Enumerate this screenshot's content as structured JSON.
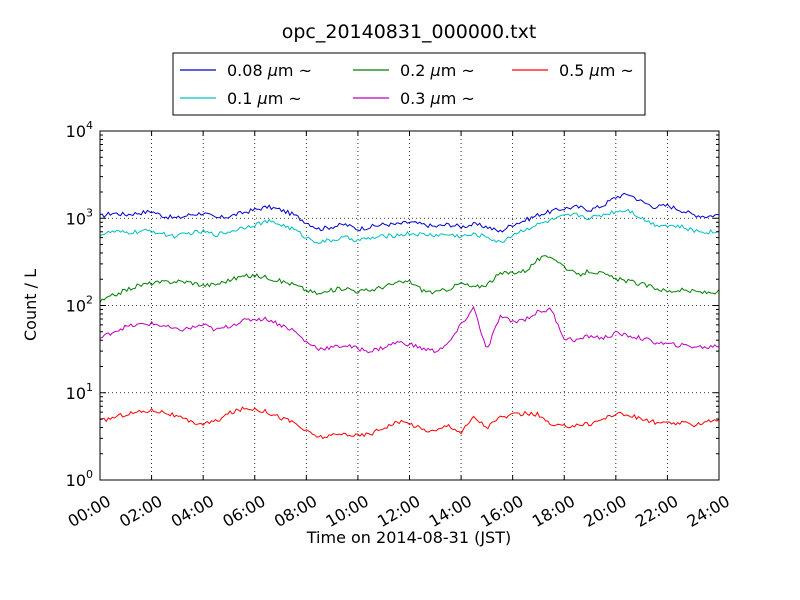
{
  "chart_data": {
    "type": "line",
    "title": "opc_20140831_000000.txt",
    "xlabel": "Time on 2014-08-31 (JST)",
    "ylabel": "Count / L",
    "x_unit": "hour",
    "xlim": [
      0,
      24
    ],
    "x_ticks": [
      {
        "value": 0,
        "label": "00:00"
      },
      {
        "value": 2,
        "label": "02:00"
      },
      {
        "value": 4,
        "label": "04:00"
      },
      {
        "value": 6,
        "label": "06:00"
      },
      {
        "value": 8,
        "label": "08:00"
      },
      {
        "value": 10,
        "label": "10:00"
      },
      {
        "value": 12,
        "label": "12:00"
      },
      {
        "value": 14,
        "label": "14:00"
      },
      {
        "value": 16,
        "label": "16:00"
      },
      {
        "value": 18,
        "label": "18:00"
      },
      {
        "value": 20,
        "label": "20:00"
      },
      {
        "value": 22,
        "label": "22:00"
      },
      {
        "value": 24,
        "label": "24:00"
      }
    ],
    "yscale": "log",
    "ylim": [
      1,
      10000
    ],
    "y_ticks": [
      {
        "value": 1,
        "base": "10",
        "exp": "0"
      },
      {
        "value": 10,
        "base": "10",
        "exp": "1"
      },
      {
        "value": 100,
        "base": "10",
        "exp": "2"
      },
      {
        "value": 1000,
        "base": "10",
        "exp": "3"
      },
      {
        "value": 10000,
        "base": "10",
        "exp": "4"
      }
    ],
    "grid": true,
    "legend_position": "top-center-outside",
    "x": [
      0,
      0.5,
      1,
      1.5,
      2,
      2.5,
      3,
      3.5,
      4,
      4.5,
      5,
      5.5,
      6,
      6.5,
      7,
      7.5,
      8,
      8.5,
      9,
      9.5,
      10,
      10.5,
      11,
      11.5,
      12,
      12.5,
      13,
      13.5,
      14,
      14.5,
      15,
      15.5,
      16,
      16.5,
      17,
      17.5,
      18,
      18.5,
      19,
      19.5,
      20,
      20.5,
      21,
      21.5,
      22,
      22.5,
      23,
      23.5,
      24
    ],
    "series": [
      {
        "name": "0.08",
        "unit": "μm",
        "suffix": "~",
        "color": "#0000cc",
        "values": [
          1050,
          1150,
          1100,
          1150,
          1200,
          1050,
          1000,
          1100,
          1150,
          1000,
          1050,
          1150,
          1250,
          1350,
          1250,
          1100,
          900,
          750,
          800,
          850,
          750,
          800,
          850,
          850,
          900,
          850,
          800,
          850,
          800,
          850,
          800,
          700,
          850,
          950,
          1100,
          1200,
          1300,
          1350,
          1250,
          1400,
          1750,
          1900,
          1550,
          1350,
          1400,
          1250,
          1100,
          1050,
          1100
        ]
      },
      {
        "name": "0.1",
        "unit": "μm",
        "suffix": "~",
        "color": "#00c0c0",
        "values": [
          650,
          700,
          680,
          700,
          720,
          650,
          620,
          680,
          700,
          650,
          700,
          780,
          850,
          920,
          850,
          750,
          600,
          530,
          560,
          600,
          560,
          590,
          620,
          640,
          670,
          650,
          640,
          650,
          620,
          650,
          620,
          520,
          650,
          750,
          850,
          950,
          1050,
          1100,
          1000,
          1100,
          1200,
          1250,
          1000,
          850,
          830,
          800,
          720,
          700,
          700
        ]
      },
      {
        "name": "0.2",
        "unit": "μm",
        "suffix": "~",
        "color": "#008000",
        "values": [
          110,
          130,
          150,
          170,
          180,
          185,
          190,
          185,
          170,
          175,
          195,
          215,
          220,
          210,
          190,
          175,
          150,
          135,
          150,
          160,
          145,
          150,
          165,
          180,
          190,
          150,
          140,
          155,
          180,
          160,
          175,
          230,
          240,
          250,
          340,
          370,
          280,
          220,
          250,
          230,
          200,
          190,
          175,
          160,
          145,
          150,
          145,
          140,
          145
        ]
      },
      {
        "name": "0.3",
        "unit": "μm",
        "suffix": "~",
        "color": "#bf00bf",
        "values": [
          42,
          50,
          57,
          60,
          62,
          58,
          52,
          55,
          60,
          52,
          58,
          66,
          70,
          70,
          60,
          52,
          38,
          32,
          33,
          35,
          32,
          30,
          33,
          38,
          36,
          32,
          30,
          36,
          60,
          95,
          30,
          75,
          65,
          70,
          85,
          90,
          42,
          40,
          45,
          42,
          48,
          45,
          42,
          38,
          36,
          35,
          34,
          33,
          35
        ]
      },
      {
        "name": "0.5",
        "unit": "μm",
        "suffix": "~",
        "color": "#ff0000",
        "values": [
          4.7,
          5.2,
          5.7,
          6.0,
          6.3,
          6.0,
          5.3,
          4.6,
          4.4,
          4.7,
          5.8,
          6.5,
          6.6,
          6.0,
          5.2,
          4.6,
          3.6,
          3.1,
          3.2,
          3.4,
          3.2,
          3.4,
          4.0,
          4.6,
          4.5,
          3.8,
          3.6,
          4.3,
          3.5,
          5.3,
          4.0,
          5.2,
          5.5,
          5.8,
          5.6,
          4.2,
          4.1,
          4.3,
          4.4,
          5.0,
          5.8,
          5.5,
          5.0,
          4.6,
          4.4,
          4.5,
          4.3,
          4.7,
          5.0
        ]
      }
    ]
  }
}
